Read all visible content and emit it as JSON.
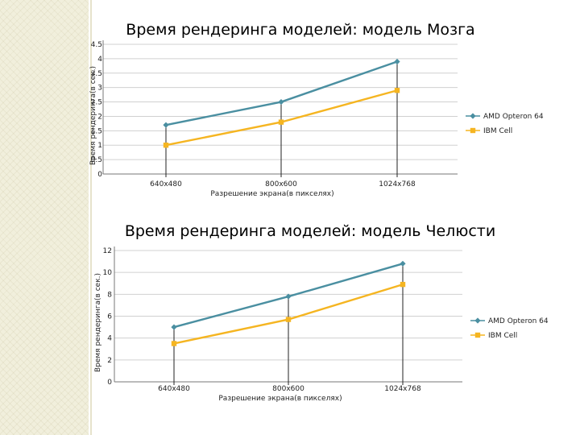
{
  "chart_data": [
    {
      "type": "line",
      "title": "Время рендеринга моделей: модель Мозга",
      "xlabel": "Разрешение экрана(в пикселях)",
      "ylabel": "Время рендеринга(в сек.)",
      "categories": [
        "640x480",
        "800x600",
        "1024x768"
      ],
      "ylim": [
        0,
        4.5
      ],
      "yticks": [
        "0",
        "0.5",
        "1",
        "1.5",
        "2",
        "2.5",
        "3",
        "3.5",
        "4",
        "4.5"
      ],
      "grid": true,
      "legend_position": "right",
      "series": [
        {
          "name": "AMD Opteron 64",
          "values": [
            1.7,
            2.5,
            3.9
          ],
          "color": "#4a8fa1",
          "marker": "diamond"
        },
        {
          "name": "IBM Cell",
          "values": [
            1.0,
            1.8,
            2.9
          ],
          "color": "#f5b521",
          "marker": "square"
        }
      ]
    },
    {
      "type": "line",
      "title": "Время рендеринга моделей: модель Челюсти",
      "xlabel": "Разрешение экрана(в пикселях)",
      "ylabel": "Время рендеринга(в сек.)",
      "categories": [
        "640x480",
        "800x600",
        "1024x768"
      ],
      "ylim": [
        0,
        12
      ],
      "yticks": [
        "0",
        "2",
        "4",
        "6",
        "8",
        "10",
        "12"
      ],
      "grid": true,
      "legend_position": "right",
      "series": [
        {
          "name": "AMD Opteron 64",
          "values": [
            5.0,
            7.8,
            10.8
          ],
          "color": "#4a8fa1",
          "marker": "diamond"
        },
        {
          "name": "IBM Cell",
          "values": [
            3.5,
            5.7,
            8.9
          ],
          "color": "#f5b521",
          "marker": "square"
        }
      ]
    }
  ]
}
